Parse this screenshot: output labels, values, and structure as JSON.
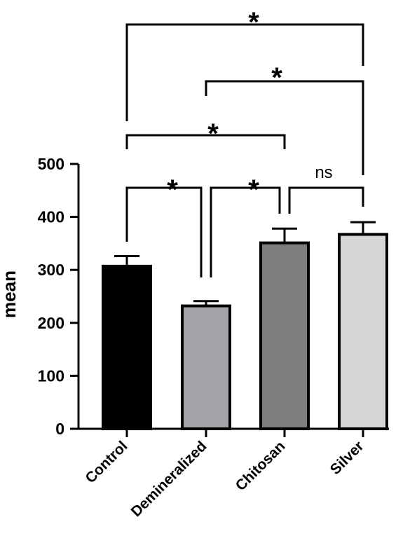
{
  "chart_data": {
    "type": "bar",
    "title": "",
    "xlabel": "",
    "ylabel": "mean",
    "ylim": [
      0,
      500
    ],
    "yticks": [
      0,
      100,
      200,
      300,
      400,
      500
    ],
    "grid": false,
    "categories": [
      "Control",
      "Demineralized",
      "Chitosan",
      "Silver"
    ],
    "values": [
      307,
      232,
      351,
      367
    ],
    "errors": [
      19,
      9,
      27,
      23
    ],
    "colors": [
      "#000000",
      "#a3a3a9",
      "#7d7d7d",
      "#d6d6d6"
    ],
    "comparisons": [
      {
        "from": "Control",
        "to": "Demineralized",
        "label": "*"
      },
      {
        "from": "Demineralized",
        "to": "Chitosan",
        "label": "*"
      },
      {
        "from": "Chitosan",
        "to": "Silver",
        "label": "ns"
      },
      {
        "from": "Control",
        "to": "Chitosan",
        "label": "*"
      },
      {
        "from": "Demineralized",
        "to": "Silver",
        "label": "*"
      },
      {
        "from": "Control",
        "to": "Silver",
        "label": "*"
      }
    ]
  }
}
